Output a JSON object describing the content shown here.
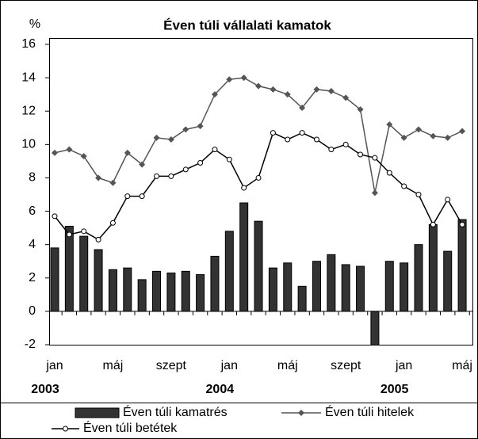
{
  "chart_data": {
    "type": "bar_line",
    "title": "Éven túli vállalati kamatok",
    "y_unit": "%",
    "categories": [
      "jan",
      null,
      null,
      null,
      "máj",
      null,
      null,
      null,
      "szept",
      null,
      null,
      null,
      "jan",
      null,
      null,
      null,
      "máj",
      null,
      null,
      null,
      "szept",
      null,
      null,
      null,
      "jan",
      null,
      null,
      null,
      "máj"
    ],
    "years": [
      "2003",
      "2004",
      "2005"
    ],
    "series": [
      {
        "name": "Éven túli kamatrés",
        "kind": "bar",
        "color": "#333333",
        "values": [
          3.8,
          5.1,
          4.5,
          3.7,
          2.5,
          2.6,
          1.9,
          2.4,
          2.3,
          2.4,
          2.2,
          3.3,
          4.8,
          6.5,
          5.4,
          2.6,
          2.9,
          1.5,
          3.0,
          3.4,
          2.8,
          2.7,
          -2.1,
          3.0,
          2.9,
          4.0,
          5.2,
          3.6,
          5.5
        ]
      },
      {
        "name": "Éven túli hitelek",
        "kind": "line",
        "marker": "diamond",
        "color": "#555555",
        "values": [
          9.5,
          9.7,
          9.3,
          8.0,
          7.7,
          9.5,
          8.8,
          10.4,
          10.3,
          10.9,
          11.1,
          13.0,
          13.9,
          14.0,
          13.5,
          13.3,
          13.0,
          12.2,
          13.3,
          13.2,
          12.8,
          12.1,
          7.1,
          11.2,
          10.4,
          10.9,
          10.5,
          10.4,
          10.8
        ]
      },
      {
        "name": "Éven túli  betétek",
        "kind": "line",
        "marker": "circle",
        "color": "#000000",
        "values": [
          5.7,
          4.6,
          4.8,
          4.3,
          5.3,
          6.9,
          6.9,
          8.1,
          8.1,
          8.5,
          8.9,
          9.7,
          9.1,
          7.4,
          8.0,
          10.7,
          10.3,
          10.7,
          10.3,
          9.7,
          10.0,
          9.4,
          9.2,
          8.3,
          7.5,
          7.0,
          5.2,
          6.7,
          5.2
        ]
      }
    ],
    "ylim": [
      -2,
      16
    ],
    "yticks": [
      -2,
      0,
      2,
      4,
      6,
      8,
      10,
      12,
      14,
      16
    ]
  }
}
